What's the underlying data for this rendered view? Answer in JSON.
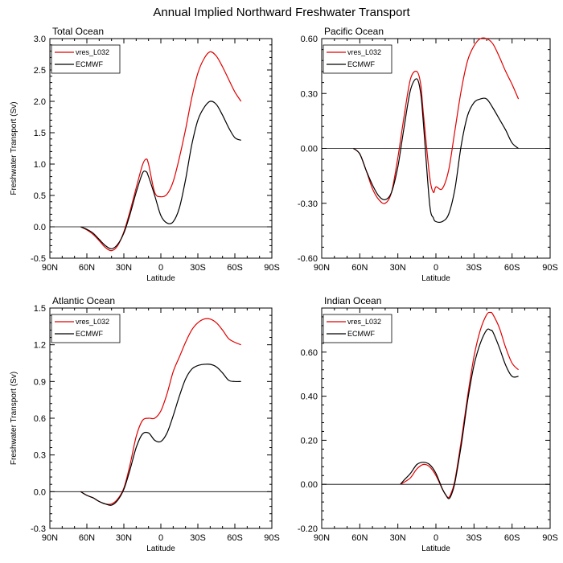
{
  "figure": {
    "title": "Annual Implied Northward Freshwater Transport"
  },
  "colors": {
    "model": "#e00000",
    "reference": "#000000",
    "zero_line": "#000000"
  },
  "chart_data": [
    {
      "type": "line",
      "title": "Total Ocean",
      "xlabel": "Latitude",
      "ylabel": "Freshwater Transport (Sv)",
      "xlim": [
        -90,
        90
      ],
      "x_ticks": [
        -90,
        -60,
        -30,
        0,
        30,
        60,
        90
      ],
      "x_tick_labels": [
        "90N",
        "60N",
        "30N",
        "0",
        "30S",
        "60S",
        "90S"
      ],
      "ylim": [
        -0.5,
        3.0
      ],
      "y_ticks": [
        -0.5,
        0.0,
        0.5,
        1.0,
        1.5,
        2.0,
        2.5,
        3.0
      ],
      "y_tick_labels": [
        "-0.5",
        "0.0",
        "0.5",
        "1.0",
        "1.5",
        "2.0",
        "2.5",
        "3.0"
      ],
      "legend": [
        "vres_L032",
        "ECMWF"
      ],
      "series": [
        {
          "name": "vres_L032",
          "color": "#e00000",
          "x": [
            -65,
            -60,
            -55,
            -50,
            -45,
            -40,
            -35,
            -30,
            -25,
            -20,
            -15,
            -12,
            -10,
            -5,
            0,
            5,
            10,
            15,
            20,
            25,
            30,
            35,
            40,
            45,
            50,
            55,
            60,
            65
          ],
          "y": [
            0.0,
            -0.05,
            -0.12,
            -0.22,
            -0.33,
            -0.38,
            -0.3,
            -0.08,
            0.25,
            0.62,
            0.98,
            1.08,
            1.0,
            0.55,
            0.48,
            0.52,
            0.72,
            1.1,
            1.55,
            2.05,
            2.45,
            2.68,
            2.79,
            2.72,
            2.55,
            2.35,
            2.15,
            2.0
          ]
        },
        {
          "name": "ECMWF",
          "color": "#000000",
          "x": [
            -65,
            -60,
            -55,
            -50,
            -45,
            -40,
            -35,
            -30,
            -25,
            -20,
            -15,
            -12,
            -10,
            -5,
            0,
            5,
            10,
            15,
            20,
            25,
            30,
            35,
            40,
            45,
            50,
            55,
            60,
            65
          ],
          "y": [
            0.0,
            -0.04,
            -0.1,
            -0.2,
            -0.3,
            -0.35,
            -0.28,
            -0.1,
            0.2,
            0.55,
            0.85,
            0.88,
            0.8,
            0.5,
            0.18,
            0.06,
            0.08,
            0.3,
            0.75,
            1.3,
            1.7,
            1.9,
            2.0,
            1.95,
            1.78,
            1.58,
            1.42,
            1.38
          ]
        }
      ]
    },
    {
      "type": "line",
      "title": "Pacific Ocean",
      "xlabel": "Latitude",
      "ylabel": "",
      "xlim": [
        -90,
        90
      ],
      "x_ticks": [
        -90,
        -60,
        -30,
        0,
        30,
        60,
        90
      ],
      "x_tick_labels": [
        "90N",
        "60N",
        "30N",
        "0",
        "30S",
        "60S",
        "90S"
      ],
      "ylim": [
        -0.6,
        0.6
      ],
      "y_ticks": [
        -0.6,
        -0.3,
        0.0,
        0.3,
        0.6
      ],
      "y_tick_labels": [
        "-0.60",
        "-0.30",
        "0.00",
        "0.30",
        "0.60"
      ],
      "legend": [
        "vres_L032",
        "ECMWF"
      ],
      "series": [
        {
          "name": "vres_L032",
          "color": "#e00000",
          "x": [
            -65,
            -60,
            -55,
            -50,
            -45,
            -40,
            -35,
            -30,
            -25,
            -20,
            -15,
            -12,
            -10,
            -5,
            -2,
            0,
            5,
            10,
            15,
            20,
            25,
            30,
            35,
            40,
            45,
            50,
            55,
            60,
            65
          ],
          "y": [
            0.0,
            -0.03,
            -0.12,
            -0.22,
            -0.28,
            -0.3,
            -0.24,
            -0.05,
            0.18,
            0.38,
            0.42,
            0.35,
            0.2,
            -0.15,
            -0.24,
            -0.21,
            -0.22,
            -0.12,
            0.1,
            0.32,
            0.48,
            0.56,
            0.6,
            0.6,
            0.57,
            0.5,
            0.42,
            0.35,
            0.27
          ]
        },
        {
          "name": "ECMWF",
          "color": "#000000",
          "x": [
            -65,
            -60,
            -55,
            -50,
            -45,
            -40,
            -35,
            -30,
            -25,
            -20,
            -15,
            -12,
            -10,
            -5,
            -2,
            0,
            5,
            10,
            15,
            20,
            25,
            30,
            35,
            40,
            45,
            50,
            55,
            60,
            65
          ],
          "y": [
            0.0,
            -0.03,
            -0.12,
            -0.2,
            -0.26,
            -0.28,
            -0.24,
            -0.1,
            0.12,
            0.32,
            0.38,
            0.3,
            0.15,
            -0.3,
            -0.38,
            -0.4,
            -0.4,
            -0.36,
            -0.22,
            0.02,
            0.18,
            0.25,
            0.27,
            0.27,
            0.22,
            0.16,
            0.1,
            0.03,
            0.0
          ]
        }
      ]
    },
    {
      "type": "line",
      "title": "Atlantic Ocean",
      "xlabel": "Latitude",
      "ylabel": "Freshwater Transport (Sv)",
      "xlim": [
        -90,
        90
      ],
      "x_ticks": [
        -90,
        -60,
        -30,
        0,
        30,
        60,
        90
      ],
      "x_tick_labels": [
        "90N",
        "60N",
        "30N",
        "0",
        "30S",
        "60S",
        "90S"
      ],
      "ylim": [
        -0.3,
        1.5
      ],
      "y_ticks": [
        -0.3,
        0.0,
        0.3,
        0.6,
        0.9,
        1.2,
        1.5
      ],
      "y_tick_labels": [
        "-0.3",
        "0.0",
        "0.3",
        "0.6",
        "0.9",
        "1.2",
        "1.5"
      ],
      "legend": [
        "vres_L032",
        "ECMWF"
      ],
      "series": [
        {
          "name": "vres_L032",
          "color": "#e00000",
          "x": [
            -65,
            -60,
            -55,
            -50,
            -45,
            -40,
            -35,
            -30,
            -25,
            -20,
            -15,
            -10,
            -5,
            0,
            5,
            10,
            15,
            20,
            25,
            30,
            35,
            40,
            45,
            50,
            55,
            60,
            65
          ],
          "y": [
            0.0,
            -0.03,
            -0.05,
            -0.08,
            -0.1,
            -0.1,
            -0.06,
            0.03,
            0.22,
            0.45,
            0.58,
            0.6,
            0.6,
            0.66,
            0.8,
            0.98,
            1.1,
            1.22,
            1.32,
            1.38,
            1.41,
            1.41,
            1.38,
            1.32,
            1.25,
            1.22,
            1.2
          ]
        },
        {
          "name": "ECMWF",
          "color": "#000000",
          "x": [
            -65,
            -60,
            -55,
            -50,
            -45,
            -40,
            -35,
            -30,
            -25,
            -20,
            -15,
            -10,
            -5,
            0,
            5,
            10,
            15,
            20,
            25,
            30,
            35,
            40,
            45,
            50,
            55,
            60,
            65
          ],
          "y": [
            0.0,
            -0.03,
            -0.05,
            -0.08,
            -0.1,
            -0.11,
            -0.07,
            0.02,
            0.18,
            0.36,
            0.47,
            0.48,
            0.42,
            0.41,
            0.48,
            0.62,
            0.78,
            0.92,
            1.0,
            1.03,
            1.04,
            1.04,
            1.02,
            0.97,
            0.91,
            0.9,
            0.9
          ]
        }
      ]
    },
    {
      "type": "line",
      "title": "Indian Ocean",
      "xlabel": "Latitude",
      "ylabel": "",
      "xlim": [
        -90,
        90
      ],
      "x_ticks": [
        -90,
        -60,
        -30,
        0,
        30,
        60,
        90
      ],
      "x_tick_labels": [
        "90N",
        "60N",
        "30N",
        "0",
        "30S",
        "60S",
        "90S"
      ],
      "ylim": [
        -0.2,
        0.8
      ],
      "y_ticks": [
        -0.2,
        0.0,
        0.2,
        0.4,
        0.6
      ],
      "y_tick_labels": [
        "-0.20",
        "0.00",
        "0.20",
        "0.40",
        "0.60"
      ],
      "legend": [
        "vres_L032",
        "ECMWF"
      ],
      "series": [
        {
          "name": "vres_L032",
          "color": "#e00000",
          "x": [
            -28,
            -25,
            -20,
            -15,
            -10,
            -5,
            0,
            5,
            8,
            10,
            12,
            15,
            20,
            25,
            30,
            35,
            40,
            43,
            45,
            50,
            55,
            60,
            65
          ],
          "y": [
            0.0,
            0.01,
            0.03,
            0.07,
            0.09,
            0.08,
            0.04,
            -0.02,
            -0.05,
            -0.06,
            -0.04,
            0.02,
            0.2,
            0.4,
            0.58,
            0.7,
            0.77,
            0.78,
            0.77,
            0.71,
            0.62,
            0.55,
            0.52
          ]
        },
        {
          "name": "ECMWF",
          "color": "#000000",
          "x": [
            -28,
            -25,
            -20,
            -15,
            -10,
            -5,
            0,
            5,
            8,
            10,
            12,
            15,
            20,
            25,
            30,
            35,
            40,
            43,
            45,
            50,
            55,
            60,
            65
          ],
          "y": [
            0.0,
            0.02,
            0.05,
            0.09,
            0.1,
            0.09,
            0.05,
            -0.02,
            -0.05,
            -0.065,
            -0.05,
            0.01,
            0.18,
            0.38,
            0.54,
            0.64,
            0.7,
            0.7,
            0.69,
            0.62,
            0.54,
            0.49,
            0.49
          ]
        }
      ]
    }
  ]
}
